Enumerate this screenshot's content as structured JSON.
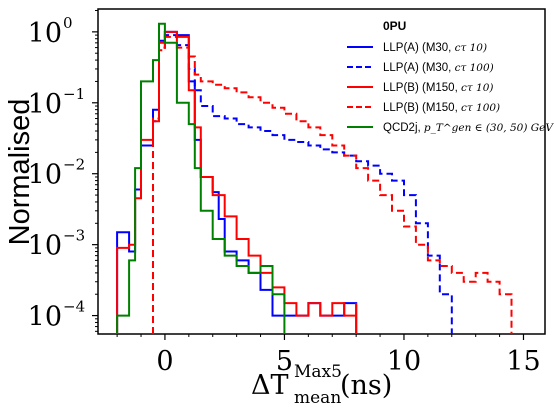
{
  "chart_data": {
    "type": "line",
    "style": "step-histogram",
    "x_scale": "linear",
    "y_scale": "log",
    "xlim": [
      -2.8,
      15.9
    ],
    "ylim": [
      5.5e-05,
      2.1
    ],
    "x_ticks": [
      0,
      5,
      10,
      15
    ],
    "x_tick_labels": [
      "0",
      "5",
      "10",
      "15"
    ],
    "y_ticks": [
      0.0001,
      0.001,
      0.01,
      0.1,
      1
    ],
    "y_tick_labels": [
      "10",
      "10",
      "10",
      "10",
      "10"
    ],
    "y_tick_exponents": [
      "−4",
      "−3",
      "−2",
      "−1",
      "0"
    ],
    "ylabel": "Normalised",
    "xlabel_main": "ΔT",
    "xlabel_super": "Max5",
    "xlabel_sub": "mean",
    "xlabel_unit": "(ns)",
    "legend": {
      "title": "0PU",
      "placement": "top-right",
      "entries": [
        {
          "label": "LLP(A) (M30,",
          "math": "cτ 10)",
          "color": "#0000ff",
          "dash": "solid"
        },
        {
          "label": "LLP(A) (M30,",
          "math": "cτ 100)",
          "color": "#0000ff",
          "dash": "dashed"
        },
        {
          "label": "LLP(B) (M150,",
          "math": "cτ 10)",
          "color": "#ff0000",
          "dash": "solid"
        },
        {
          "label": "LLP(B) (M150,",
          "math": "cτ 100)",
          "color": "#ff0000",
          "dash": "dashed"
        },
        {
          "label": "QCD2j,",
          "math": "p_T^gen ∈ (30, 50) GeV",
          "color": "#008000",
          "dash": "solid"
        }
      ]
    },
    "series": [
      {
        "name": "LLP(A) (M30, cτ 10)",
        "color": "#0000ff",
        "dash": "solid",
        "bins": [
          [
            -2.0,
            0.0015
          ],
          [
            -1.5,
            0.0008
          ],
          [
            -1.25,
            0.006
          ],
          [
            -1.0,
            0.025
          ],
          [
            -0.5,
            0.08
          ],
          [
            -0.25,
            0.75
          ],
          [
            0.0,
            1.0
          ],
          [
            0.5,
            0.9
          ],
          [
            1.0,
            0.2
          ],
          [
            1.25,
            0.03
          ],
          [
            1.5,
            0.009
          ],
          [
            2.0,
            0.0055
          ],
          [
            2.25,
            0.0023
          ],
          [
            2.5,
            0.0008
          ],
          [
            3.0,
            0.0006
          ],
          [
            3.5,
            0.0004
          ],
          [
            4.0,
            0.00023
          ],
          [
            4.5,
            0.0001
          ],
          [
            5.5,
            0.0001
          ],
          [
            6.0,
            0.00015
          ],
          [
            6.5,
            0.0001
          ],
          [
            7.0,
            0.0001
          ],
          [
            7.5,
            0.00015
          ],
          [
            8.0,
            0.0001
          ]
        ],
        "end": 8.0
      },
      {
        "name": "LLP(A) (M30, cτ 100)",
        "color": "#0000ff",
        "dash": "dashed",
        "bins": [
          [
            -0.5,
            0.055
          ],
          [
            -0.25,
            0.6
          ],
          [
            0.0,
            0.9
          ],
          [
            0.5,
            0.65
          ],
          [
            1.0,
            0.3
          ],
          [
            1.25,
            0.15
          ],
          [
            1.5,
            0.09
          ],
          [
            2.0,
            0.065
          ],
          [
            2.5,
            0.06
          ],
          [
            3.0,
            0.05
          ],
          [
            3.5,
            0.045
          ],
          [
            4.0,
            0.04
          ],
          [
            4.5,
            0.035
          ],
          [
            5.0,
            0.03
          ],
          [
            5.5,
            0.028
          ],
          [
            6.0,
            0.025
          ],
          [
            6.5,
            0.022
          ],
          [
            7.0,
            0.02
          ],
          [
            7.5,
            0.018
          ],
          [
            8.0,
            0.015
          ],
          [
            8.5,
            0.013
          ],
          [
            9.0,
            0.01
          ],
          [
            9.5,
            0.008
          ],
          [
            10.0,
            0.005
          ],
          [
            10.5,
            0.002
          ],
          [
            11.0,
            0.0007
          ],
          [
            11.5,
            0.0002
          ],
          [
            12.0,
            0.0001
          ]
        ],
        "end": 12.0
      },
      {
        "name": "LLP(B) (M150, cτ 10)",
        "color": "#ff0000",
        "dash": "solid",
        "bins": [
          [
            -2.0,
            0.0009
          ],
          [
            -1.5,
            0.001
          ],
          [
            -1.25,
            0.0045
          ],
          [
            -1.0,
            0.03
          ],
          [
            -0.5,
            0.055
          ],
          [
            -0.25,
            0.7
          ],
          [
            0.0,
            1.0
          ],
          [
            0.5,
            0.85
          ],
          [
            1.0,
            0.15
          ],
          [
            1.25,
            0.045
          ],
          [
            1.5,
            0.009
          ],
          [
            2.0,
            0.005
          ],
          [
            2.5,
            0.0025
          ],
          [
            3.0,
            0.0012
          ],
          [
            3.5,
            0.0007
          ],
          [
            4.0,
            0.0004
          ],
          [
            4.5,
            0.00025
          ],
          [
            5.0,
            0.00015
          ],
          [
            5.5,
            0.0001
          ],
          [
            6.0,
            0.00015
          ],
          [
            6.5,
            0.0001
          ],
          [
            7.0,
            0.00015
          ],
          [
            7.5,
            0.0001
          ],
          [
            8.0,
            0.00015
          ]
        ],
        "end": 8.0
      },
      {
        "name": "LLP(B) (M150, cτ 100)",
        "color": "#ff0000",
        "dash": "dashed",
        "bins": [
          [
            -0.5,
            0.06
          ],
          [
            -0.25,
            0.55
          ],
          [
            0.0,
            0.85
          ],
          [
            0.5,
            0.6
          ],
          [
            1.0,
            0.45
          ],
          [
            1.25,
            0.25
          ],
          [
            1.5,
            0.2
          ],
          [
            2.0,
            0.18
          ],
          [
            2.5,
            0.16
          ],
          [
            3.0,
            0.14
          ],
          [
            3.5,
            0.12
          ],
          [
            4.0,
            0.1
          ],
          [
            4.5,
            0.085
          ],
          [
            5.0,
            0.07
          ],
          [
            5.5,
            0.055
          ],
          [
            6.0,
            0.045
          ],
          [
            6.5,
            0.035
          ],
          [
            7.0,
            0.025
          ],
          [
            7.5,
            0.018
          ],
          [
            8.0,
            0.012
          ],
          [
            8.5,
            0.008
          ],
          [
            9.0,
            0.005
          ],
          [
            9.5,
            0.003
          ],
          [
            10.0,
            0.0018
          ],
          [
            10.5,
            0.001
          ],
          [
            11.0,
            0.0006
          ],
          [
            11.5,
            0.0005
          ],
          [
            12.0,
            0.0004
          ],
          [
            12.5,
            0.0003
          ],
          [
            13.0,
            0.0004
          ],
          [
            13.5,
            0.0003
          ],
          [
            14.0,
            0.0002
          ],
          [
            14.5,
            0.00012
          ]
        ],
        "end": 14.5
      },
      {
        "name": "QCD2j, pT gen ∈ (30, 50) GeV",
        "color": "#008000",
        "dash": "solid",
        "bins": [
          [
            -2.0,
            0.0001
          ],
          [
            -1.5,
            0.0006
          ],
          [
            -1.25,
            0.012
          ],
          [
            -1.0,
            0.2
          ],
          [
            -0.5,
            0.4
          ],
          [
            -0.25,
            1.3
          ],
          [
            0.0,
            0.7
          ],
          [
            0.5,
            0.1
          ],
          [
            1.0,
            0.05
          ],
          [
            1.25,
            0.012
          ],
          [
            1.5,
            0.003
          ],
          [
            2.0,
            0.0012
          ],
          [
            2.5,
            0.0007
          ],
          [
            3.0,
            0.0005
          ],
          [
            3.5,
            0.0004
          ],
          [
            4.0,
            0.0005
          ],
          [
            4.5,
            0.0002
          ],
          [
            5.0,
            0.0001
          ]
        ],
        "end": 5.0
      }
    ]
  }
}
